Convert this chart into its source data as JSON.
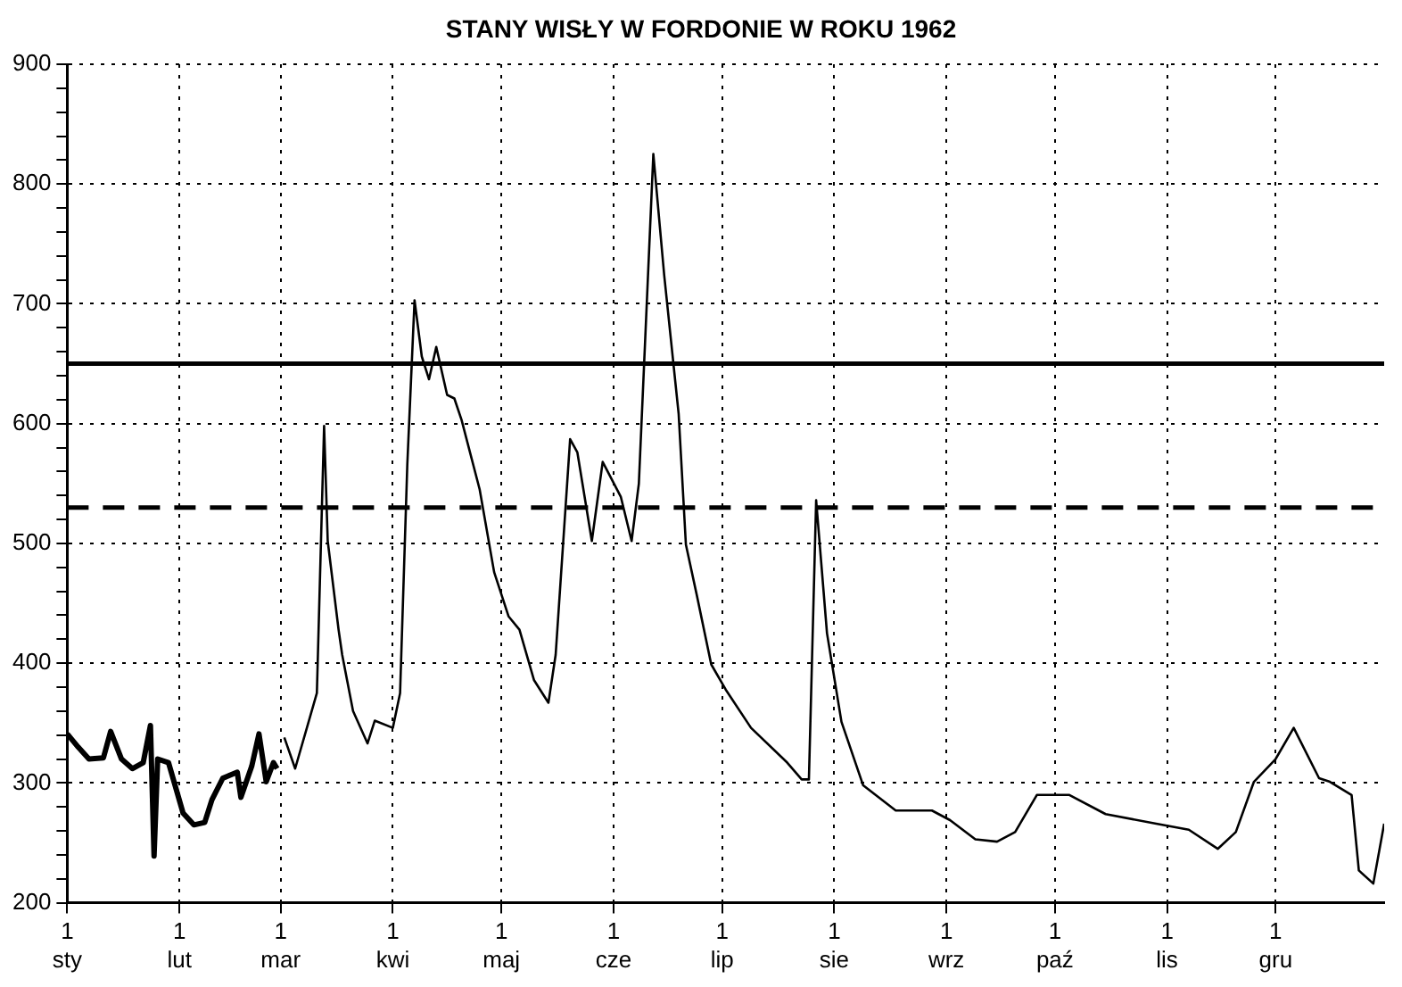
{
  "chart_data": {
    "type": "line",
    "title": "STANY WISŁY W FORDONIE W ROKU 1962",
    "xlim": [
      "--01-01",
      "--12-31"
    ],
    "xticks": [
      {
        "value": "--01-01",
        "label": "1\nsty"
      },
      {
        "value": "--02-01",
        "label": "1\nlut"
      },
      {
        "value": "--03-01",
        "label": "1\nmar"
      },
      {
        "value": "--04-01",
        "label": "1\nkwi"
      },
      {
        "value": "--05-01",
        "label": "1\nmaj"
      },
      {
        "value": "--06-01",
        "label": "1\ncze"
      },
      {
        "value": "--07-01",
        "label": "1\nlip"
      },
      {
        "value": "--08-01",
        "label": "1\nsie"
      },
      {
        "value": "--09-01",
        "label": "1\nwrz"
      },
      {
        "value": "--10-01",
        "label": "1\npaź"
      },
      {
        "value": "--11-01",
        "label": "1\nlis"
      },
      {
        "value": "--12-01",
        "label": "1\ngru"
      }
    ],
    "ylim": [
      200,
      900
    ],
    "yticks": [
      200,
      {
        "value": 220,
        "label": null
      },
      {
        "value": 240,
        "label": null
      },
      {
        "value": 260,
        "label": null
      },
      {
        "value": 280,
        "label": null
      },
      300,
      {
        "value": 320,
        "label": null
      },
      {
        "value": 340,
        "label": null
      },
      {
        "value": 360,
        "label": null
      },
      {
        "value": 380,
        "label": null
      },
      400,
      {
        "value": 420,
        "label": null
      },
      {
        "value": 440,
        "label": null
      },
      {
        "value": 460,
        "label": null
      },
      {
        "value": 480,
        "label": null
      },
      500,
      {
        "value": 520,
        "label": null
      },
      {
        "value": 540,
        "label": null
      },
      {
        "value": 560,
        "label": null
      },
      {
        "value": 580,
        "label": null
      },
      600,
      {
        "value": 620,
        "label": null
      },
      {
        "value": 640,
        "label": null
      },
      {
        "value": 660,
        "label": null
      },
      {
        "value": 680,
        "label": null
      },
      700,
      {
        "value": 720,
        "label": null
      },
      {
        "value": 740,
        "label": null
      },
      {
        "value": 760,
        "label": null
      },
      {
        "value": 780,
        "label": null
      },
      800,
      {
        "value": 820,
        "label": null
      },
      {
        "value": 840,
        "label": null
      },
      {
        "value": 860,
        "label": null
      },
      {
        "value": 880,
        "label": null
      },
      900
    ],
    "grid": true,
    "legend": false,
    "marker": "none",
    "line_style": "solid",
    "ref_lines": [
      {
        "axis": "y",
        "value": 650,
        "color": "#000000",
        "line_style": "solid"
      },
      {
        "axis": "y",
        "value": 530,
        "color": "#000000",
        "line_style": "dashed"
      }
    ],
    "series": [
      {
        "color": "#000000",
        "x": [
          "--01-01",
          "--01-04",
          "--01-07",
          "--01-11",
          "--01-13",
          "--01-16",
          "--01-19",
          "--01-22",
          "--01-24",
          "--01-25",
          "--01-26",
          "--01-29",
          "--02-02",
          "--02-05",
          "--02-08",
          "--02-10",
          "--02-13",
          "--02-17",
          "--02-18",
          "--02-21",
          "--02-23",
          "--02-25",
          "--02-27",
          "--02-28"
        ],
        "values": [
          341,
          330,
          320,
          321,
          343,
          320,
          312,
          317,
          348,
          239,
          320,
          317,
          275,
          265,
          267,
          286,
          304,
          309,
          288,
          314,
          341,
          301,
          317,
          312
        ]
      },
      {
        "color": "#000000",
        "x": [
          "--03-02",
          "--03-05",
          "--03-09",
          "--03-11",
          "--03-13",
          "--03-14",
          "--03-17",
          "--03-18",
          "--03-21",
          "--03-25",
          "--03-27",
          "--04-01",
          "--04-03",
          "--04-05",
          "--04-07",
          "--04-09",
          "--04-11",
          "--04-13",
          "--04-16",
          "--04-18",
          "--04-20",
          "--04-25",
          "--04-29",
          "--05-03",
          "--05-06",
          "--05-10",
          "--05-14",
          "--05-16",
          "--05-20",
          "--05-22",
          "--05-26",
          "--05-29",
          "--06-03",
          "--06-06",
          "--06-08",
          "--06-12",
          "--06-15",
          "--06-19",
          "--06-21",
          "--06-24",
          "--06-28",
          "--07-02",
          "--07-09",
          "--07-19",
          "--07-23",
          "--07-25",
          "--07-27",
          "--07-30",
          "--08-03",
          "--08-09",
          "--08-18",
          "--08-28",
          "--09-02",
          "--09-09",
          "--09-15",
          "--09-20",
          "--09-26",
          "--10-05",
          "--10-15",
          "--10-29",
          "--11-07",
          "--11-15",
          "--11-20",
          "--11-25",
          "--12-01",
          "--12-06",
          "--12-13",
          "--12-16",
          "--12-22",
          "--12-24",
          "--12-28",
          "--12-31"
        ],
        "values": [
          338,
          312,
          354,
          375,
          598,
          502,
          428,
          407,
          360,
          333,
          352,
          346,
          375,
          566,
          703,
          656,
          637,
          664,
          624,
          621,
          603,
          545,
          476,
          439,
          428,
          386,
          367,
          407,
          587,
          576,
          502,
          568,
          539,
          502,
          550,
          825,
          724,
          608,
          499,
          457,
          399,
          378,
          346,
          317,
          303,
          303,
          536,
          425,
          351,
          298,
          277,
          277,
          269,
          253,
          251,
          259,
          290,
          290,
          274,
          266,
          261,
          245,
          259,
          301,
          320,
          346,
          304,
          301,
          290,
          227,
          216,
          266
        ]
      }
    ]
  }
}
